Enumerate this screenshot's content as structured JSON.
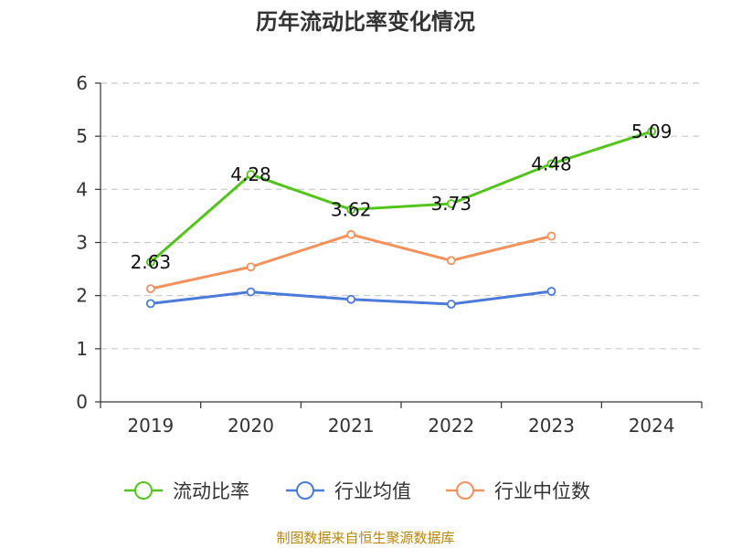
{
  "chart_data": {
    "type": "line",
    "title": "历年流动比率变化情况",
    "xlabel": "",
    "ylabel": "",
    "categories": [
      "2019",
      "2020",
      "2021",
      "2022",
      "2023",
      "2024"
    ],
    "ylim": [
      0,
      6
    ],
    "yticks": [
      "0",
      "1",
      "2",
      "3",
      "4",
      "5",
      "6"
    ],
    "grid": true,
    "legend": "bottom",
    "series": [
      {
        "name": "流动比率",
        "color": "#52c41a",
        "values": [
          2.63,
          4.28,
          3.62,
          3.73,
          4.48,
          5.09
        ],
        "labels": [
          "2.63",
          "4.28",
          "3.62",
          "3.73",
          "4.48",
          "5.09"
        ]
      },
      {
        "name": "行业均值",
        "color": "#4a7bd9",
        "values": [
          1.85,
          2.07,
          1.93,
          1.84,
          2.08,
          null
        ]
      },
      {
        "name": "行业中位数",
        "color": "#f5915a",
        "values": [
          2.13,
          2.54,
          3.15,
          2.66,
          3.12,
          null
        ]
      }
    ]
  },
  "source": "制图数据来自恒生聚源数据库"
}
